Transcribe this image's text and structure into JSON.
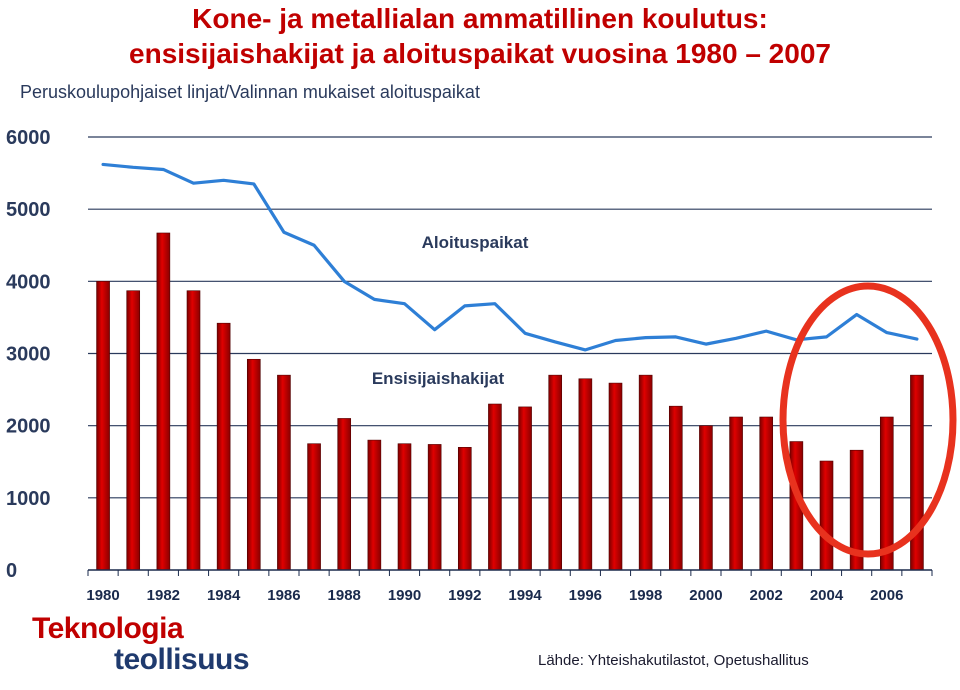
{
  "title_line1": "Kone- ja metallialan ammatillinen koulutus:",
  "title_line2": "ensisijaishakijat ja aloituspaikat vuosina 1980 – 2007",
  "subtitle": "Peruskoulupohjaiset linjat/Valinnan mukaiset aloituspaikat",
  "logo": {
    "line1": "Teknologia",
    "line2": "teollisuus"
  },
  "source": "Lähde: Yhteishakutilastot, Opetushallitus",
  "colors": {
    "title": "#c00000",
    "bars": "#e00000",
    "line": "#2e7fd6",
    "highlight": "#e8321e"
  },
  "chart_data": {
    "type": "bar+line",
    "years": [
      1980,
      1981,
      1982,
      1983,
      1984,
      1985,
      1986,
      1987,
      1988,
      1989,
      1990,
      1991,
      1992,
      1993,
      1994,
      1995,
      1996,
      1997,
      1998,
      1999,
      2000,
      2001,
      2002,
      2003,
      2004,
      2005,
      2006,
      2007
    ],
    "x_tick_labels": [
      "1980",
      "1982",
      "1984",
      "1986",
      "1988",
      "1990",
      "1992",
      "1994",
      "1996",
      "1998",
      "2000",
      "2002",
      "2004",
      "2006"
    ],
    "y_tick_labels": [
      "0",
      "1000",
      "2000",
      "3000",
      "4000",
      "5000",
      "6000"
    ],
    "ylim": [
      0,
      6000
    ],
    "series": [
      {
        "name": "Ensisijaishakijat",
        "type": "bar",
        "values": [
          4000,
          3870,
          4670,
          3870,
          3420,
          2920,
          2700,
          1750,
          2100,
          1800,
          1750,
          1740,
          1700,
          2300,
          2260,
          2700,
          2650,
          2590,
          2700,
          2270,
          2000,
          2120,
          2120,
          1780,
          1510,
          1660,
          2120,
          2700
        ]
      },
      {
        "name": "Aloituspaikat",
        "type": "line",
        "values": [
          5620,
          5580,
          5550,
          5360,
          5400,
          5350,
          4680,
          4500,
          4000,
          3750,
          3690,
          3330,
          3660,
          3690,
          3280,
          3160,
          3050,
          3180,
          3220,
          3230,
          3130,
          3210,
          3310,
          3190,
          3230,
          3540,
          3290,
          3200
        ]
      }
    ],
    "annotation": "red ellipse highlighting 2003–2007"
  }
}
